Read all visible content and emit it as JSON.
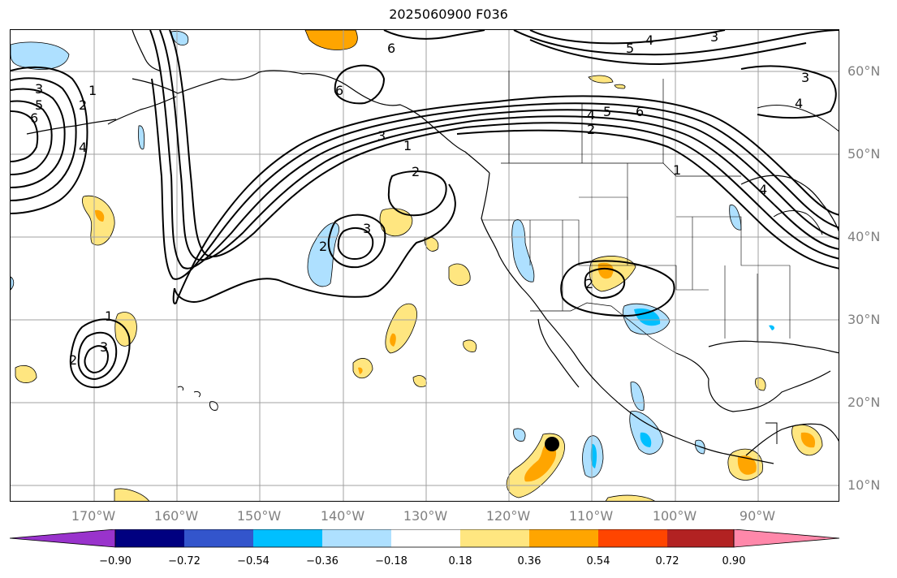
{
  "title": "2025060900 F036",
  "map": {
    "projection": "PlateCarree",
    "extent_lon": [
      -180,
      -80
    ],
    "extent_lat": [
      8,
      65
    ],
    "latitude_labels": [
      "60°N",
      "50°N",
      "40°N",
      "30°N",
      "20°N",
      "10°N"
    ],
    "latitude_values": [
      60,
      50,
      40,
      30,
      20,
      10
    ],
    "longitude_labels": [
      "170°W",
      "160°W",
      "150°W",
      "140°W",
      "130°W",
      "120°W",
      "110°W",
      "100°W",
      "90°W"
    ],
    "longitude_values": [
      -170,
      -160,
      -150,
      -140,
      -130,
      -120,
      -110,
      -100,
      -90
    ],
    "grid": true,
    "grid_color": "#a0a0a0",
    "contour_labels": [
      "1",
      "2",
      "3",
      "4",
      "5",
      "6"
    ],
    "marker": {
      "lon": -115,
      "lat": 15,
      "shape": "filled circle",
      "color": "#000000"
    }
  },
  "colorbar": {
    "extend": "both",
    "ticks": [
      "−0.90",
      "−0.72",
      "−0.54",
      "−0.36",
      "−0.18",
      "0.18",
      "0.36",
      "0.54",
      "0.72",
      "0.90"
    ],
    "colors": [
      "#9933cc",
      "#000080",
      "#3355cc",
      "#00bfff",
      "#aee0ff",
      "#ffffff",
      "#ffe680",
      "#ffa500",
      "#ff4500",
      "#b22222",
      "#ff88aa"
    ]
  }
}
